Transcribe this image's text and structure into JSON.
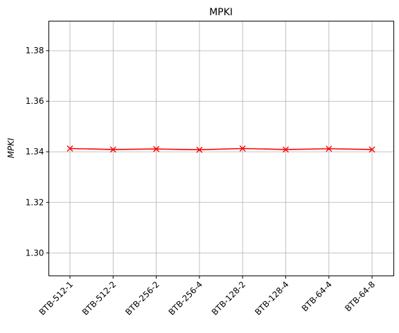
{
  "chart_data": {
    "type": "line",
    "title": "MPKI",
    "xlabel": "",
    "ylabel": "MPKI",
    "categories": [
      "BTB-512-1",
      "BTB-512-2",
      "BTB-256-2",
      "BTB-256-4",
      "BTB-128-2",
      "BTB-128-4",
      "BTB-64-4",
      "BTB-64-8"
    ],
    "series": [
      {
        "values": [
          1.3413,
          1.3409,
          1.3411,
          1.3408,
          1.3413,
          1.3409,
          1.3412,
          1.3409
        ]
      }
    ],
    "ylim": [
      1.2909,
      1.3917
    ],
    "yticks": [
      "1.30",
      "1.32",
      "1.34",
      "1.36",
      "1.38"
    ],
    "grid": true,
    "marker": "x",
    "colors": {
      "line": "#ff0000",
      "grid": "#b0b0b0",
      "axes": "#000000"
    }
  }
}
